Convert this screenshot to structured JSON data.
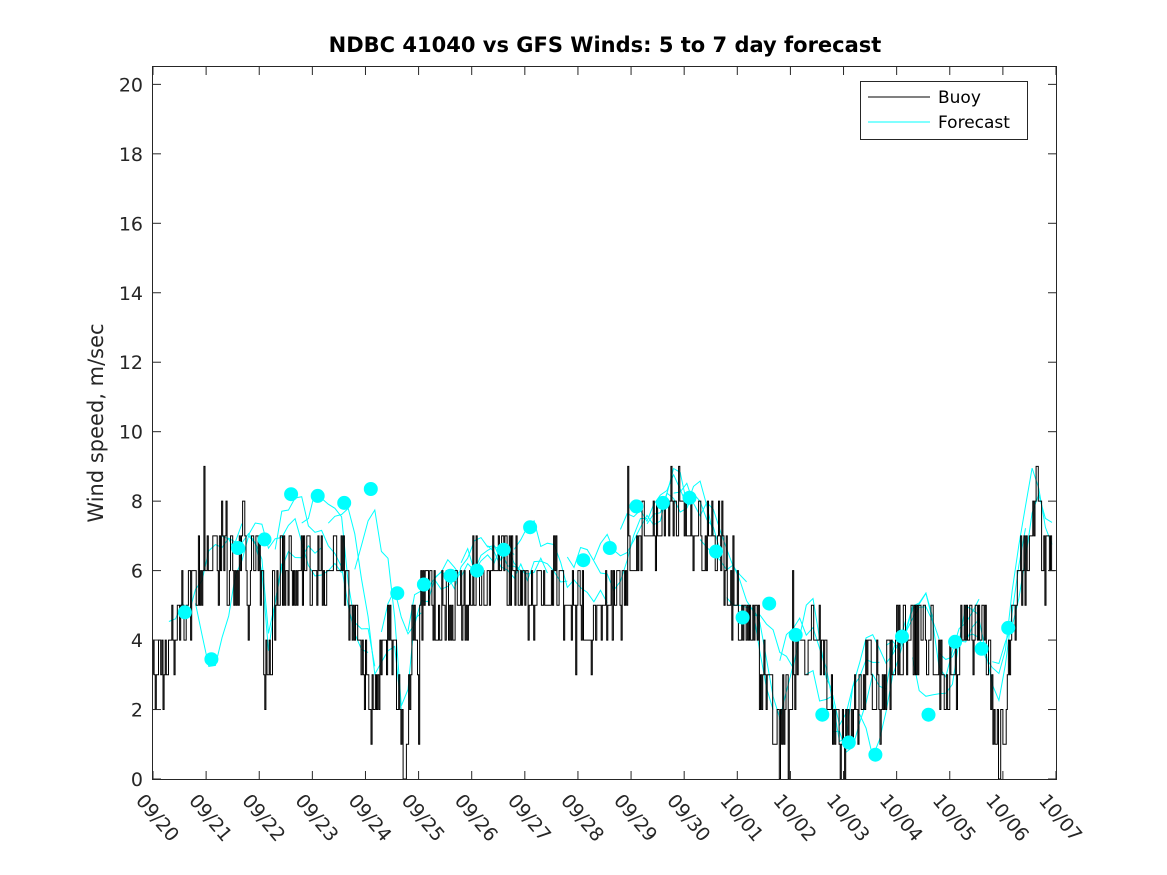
{
  "chart_data": {
    "type": "line",
    "title": "NDBC 41040 vs GFS Winds: 5 to 7 day forecast",
    "xlabel": "",
    "ylabel": "Wind speed, m/sec",
    "ylim": [
      0,
      20.5
    ],
    "xlim": [
      0,
      17
    ],
    "y_ticks": [
      0,
      2,
      4,
      6,
      8,
      10,
      12,
      14,
      16,
      18,
      20
    ],
    "x_tick_labels": [
      "09/20",
      "09/21",
      "09/22",
      "09/23",
      "09/24",
      "09/25",
      "09/26",
      "09/27",
      "09/28",
      "09/29",
      "09/30",
      "10/01",
      "10/02",
      "10/03",
      "10/04",
      "10/05",
      "10/06",
      "10/07"
    ],
    "legend": {
      "position": "top-right",
      "entries": [
        "Buoy",
        "Forecast"
      ]
    },
    "colors": {
      "buoy": "#000000",
      "forecast": "#00ffff"
    },
    "buoy_anchors": [
      [
        0.0,
        3.2
      ],
      [
        0.3,
        3.2
      ],
      [
        0.55,
        4.5
      ],
      [
        0.8,
        6.0
      ],
      [
        1.0,
        6.8
      ],
      [
        1.3,
        6.5
      ],
      [
        1.6,
        6.3
      ],
      [
        1.9,
        6.6
      ],
      [
        2.05,
        6.0
      ],
      [
        2.1,
        3.0
      ],
      [
        2.2,
        4.0
      ],
      [
        2.4,
        6.0
      ],
      [
        2.7,
        6.3
      ],
      [
        3.0,
        5.8
      ],
      [
        3.3,
        6.3
      ],
      [
        3.6,
        6.0
      ],
      [
        3.75,
        4.0
      ],
      [
        4.0,
        3.6
      ],
      [
        4.2,
        2.5
      ],
      [
        4.4,
        3.8
      ],
      [
        4.6,
        3.0
      ],
      [
        4.75,
        0.0
      ],
      [
        4.85,
        3.5
      ],
      [
        5.0,
        4.5
      ],
      [
        5.3,
        5.0
      ],
      [
        5.6,
        4.8
      ],
      [
        5.9,
        5.5
      ],
      [
        6.2,
        6.0
      ],
      [
        6.5,
        6.2
      ],
      [
        6.8,
        5.8
      ],
      [
        7.0,
        5.0
      ],
      [
        7.2,
        5.4
      ],
      [
        7.5,
        5.7
      ],
      [
        7.8,
        5.2
      ],
      [
        8.1,
        5.0
      ],
      [
        8.3,
        4.5
      ],
      [
        8.6,
        4.8
      ],
      [
        8.9,
        5.5
      ],
      [
        9.1,
        6.3
      ],
      [
        9.3,
        6.8
      ],
      [
        9.5,
        7.2
      ],
      [
        9.8,
        8.0
      ],
      [
        10.05,
        7.4
      ],
      [
        10.2,
        7.6
      ],
      [
        10.5,
        7.0
      ],
      [
        10.8,
        5.8
      ],
      [
        11.0,
        5.2
      ],
      [
        11.3,
        4.2
      ],
      [
        11.5,
        3.0
      ],
      [
        11.7,
        1.8
      ],
      [
        11.8,
        1.5
      ],
      [
        12.0,
        2.5
      ],
      [
        12.2,
        3.5
      ],
      [
        12.45,
        4.6
      ],
      [
        12.7,
        2.5
      ],
      [
        12.9,
        1.2
      ],
      [
        13.0,
        0.5
      ],
      [
        13.2,
        2.0
      ],
      [
        13.5,
        3.2
      ],
      [
        13.7,
        2.4
      ],
      [
        13.8,
        2.5
      ],
      [
        14.0,
        3.6
      ],
      [
        14.3,
        4.3
      ],
      [
        14.6,
        4.2
      ],
      [
        14.9,
        2.2
      ],
      [
        15.1,
        3.2
      ],
      [
        15.4,
        4.5
      ],
      [
        15.6,
        4.5
      ],
      [
        15.8,
        2.2
      ],
      [
        15.95,
        1.2
      ],
      [
        16.2,
        4.6
      ],
      [
        16.4,
        6.2
      ],
      [
        16.6,
        7.8
      ],
      [
        16.8,
        6.5
      ],
      [
        17.0,
        6.0
      ]
    ],
    "forecast_points": [
      [
        0.6,
        4.8
      ],
      [
        1.1,
        3.45
      ],
      [
        1.6,
        6.65
      ],
      [
        2.1,
        6.9
      ],
      [
        2.6,
        8.2
      ],
      [
        3.1,
        8.15
      ],
      [
        3.6,
        7.95
      ],
      [
        4.1,
        8.35
      ],
      [
        4.6,
        5.35
      ],
      [
        5.1,
        5.6
      ],
      [
        5.6,
        5.85
      ],
      [
        6.1,
        6.0
      ],
      [
        6.6,
        6.6
      ],
      [
        7.1,
        7.25
      ],
      [
        8.1,
        6.3
      ],
      [
        8.6,
        6.65
      ],
      [
        9.1,
        7.85
      ],
      [
        9.6,
        7.95
      ],
      [
        10.1,
        8.1
      ],
      [
        10.6,
        6.55
      ],
      [
        11.1,
        4.65
      ],
      [
        11.6,
        5.05
      ],
      [
        12.1,
        4.15
      ],
      [
        12.6,
        1.85
      ],
      [
        13.1,
        1.05
      ],
      [
        13.6,
        0.7
      ],
      [
        14.1,
        4.1
      ],
      [
        14.6,
        1.85
      ],
      [
        15.1,
        3.95
      ],
      [
        15.6,
        3.75
      ],
      [
        16.1,
        4.35
      ]
    ]
  }
}
